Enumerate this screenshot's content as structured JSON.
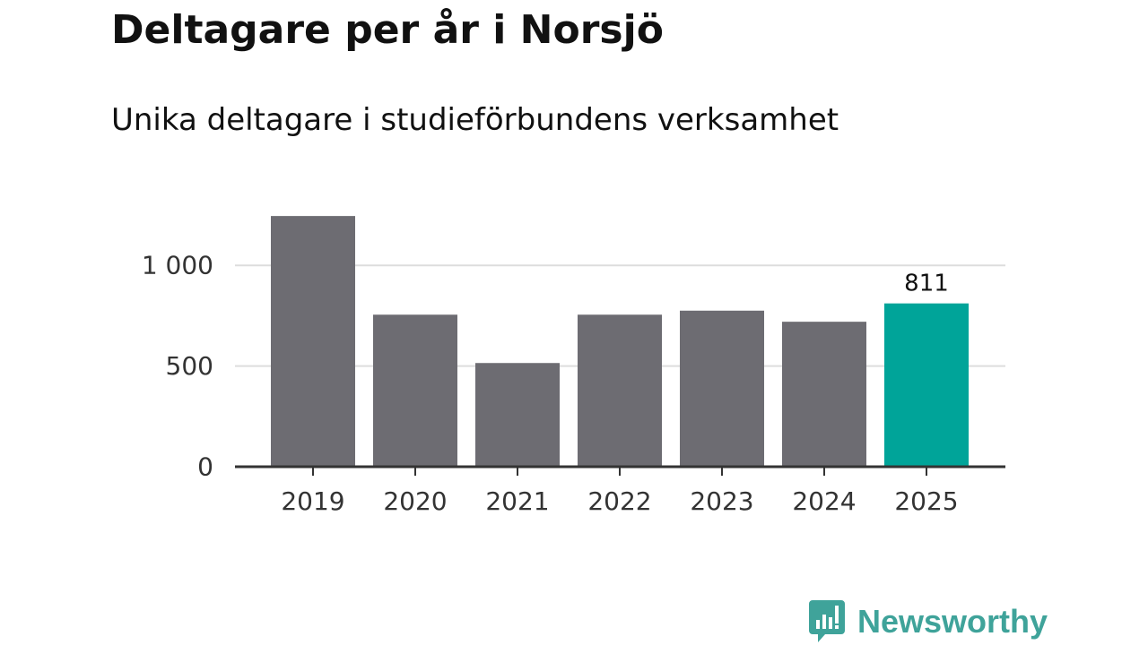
{
  "header": {
    "title": "Deltagare per år i Norsjö",
    "subtitle": "Unika deltagare i studieförbundens verksamhet"
  },
  "brand": {
    "name": "Newsworthy",
    "icon": "newsworthy-logo-icon",
    "color": "#3fa39a"
  },
  "colors": {
    "bar": "#6d6c72",
    "highlight": "#00a499",
    "grid": "#dddddd",
    "axis": "#333333"
  },
  "chart_data": {
    "type": "bar",
    "categories": [
      "2019",
      "2020",
      "2021",
      "2022",
      "2023",
      "2024",
      "2025"
    ],
    "values": [
      1245,
      755,
      515,
      755,
      775,
      720,
      811
    ],
    "highlight_index": 6,
    "data_labels": [
      {
        "index": 6,
        "text": "811"
      }
    ],
    "title": "Deltagare per år i Norsjö",
    "subtitle": "Unika deltagare i studieförbundens verksamhet",
    "ylim": [
      0,
      1250
    ],
    "yticks": [
      0,
      500,
      1000
    ],
    "ytick_labels": [
      "0",
      "500",
      "1 000"
    ],
    "grid": true
  }
}
